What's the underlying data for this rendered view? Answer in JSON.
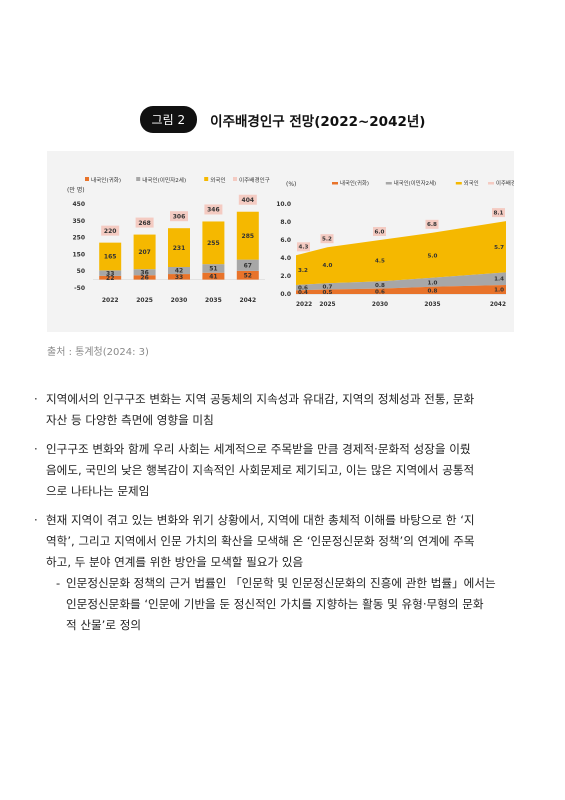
{
  "figure": {
    "badge": "그림 2",
    "title": "이주배경인구 전망(2022~2042년)"
  },
  "source": "출처 : 통계청(2024: 3)",
  "colors": {
    "native_naturalized": "#e8732a",
    "native_immigrant2": "#a7a7a7",
    "foreigner": "#f5b800",
    "total": "#f4cbc2"
  },
  "chart_data": [
    {
      "type": "bar",
      "unit_label": "(만 명)",
      "categories": [
        "2022",
        "2025",
        "2030",
        "2035",
        "2042"
      ],
      "legend": [
        "내국인(귀화)",
        "내국인(이민자2세)",
        "외국인",
        "이주배경인구"
      ],
      "yticks": [
        "450",
        "350",
        "250",
        "150",
        "50",
        "-50"
      ],
      "ylim": [
        -50,
        450
      ],
      "series": [
        {
          "name": "내국인(귀화)",
          "values": [
            22,
            26,
            33,
            41,
            52
          ],
          "labels": [
            "22",
            "26",
            "33",
            "41",
            "52"
          ]
        },
        {
          "name": "내국인(이민자2세)",
          "values": [
            33,
            36,
            42,
            51,
            67
          ],
          "labels": [
            "33",
            "36",
            "42",
            "51",
            "67"
          ]
        },
        {
          "name": "외국인",
          "values": [
            165,
            207,
            231,
            255,
            285
          ],
          "labels": [
            "165",
            "207",
            "231",
            "255",
            "285"
          ]
        },
        {
          "name": "이주배경인구",
          "values": [
            220,
            268,
            306,
            346,
            404
          ],
          "labels": [
            "220",
            "268",
            "306",
            "346",
            "404"
          ]
        }
      ]
    },
    {
      "type": "area",
      "unit_label": "(%)",
      "categories": [
        "2022",
        "2025",
        "2030",
        "2035",
        "2042"
      ],
      "legend": [
        "내국인(귀화)",
        "내국인(이민자2세)",
        "외국인",
        "이주배경인구"
      ],
      "yticks": [
        "10.0",
        "8.0",
        "6.0",
        "4.0",
        "2.0",
        "0.0"
      ],
      "ylim": [
        0,
        10
      ],
      "series": [
        {
          "name": "내국인(귀화)",
          "values": [
            0.4,
            0.5,
            0.6,
            0.8,
            1.0
          ],
          "labels": [
            "0.4",
            "0.5",
            "0.6",
            "0.8",
            "1.0"
          ]
        },
        {
          "name": "내국인(이민자2세)",
          "values": [
            0.6,
            0.7,
            0.8,
            1.0,
            1.4
          ],
          "labels": [
            "0.6",
            "0.7",
            "0.8",
            "1.0",
            "1.4"
          ]
        },
        {
          "name": "외국인",
          "values": [
            3.2,
            4.0,
            4.5,
            5.0,
            5.7
          ],
          "labels": [
            "3.2",
            "4.0",
            "4.5",
            "5.0",
            "5.7"
          ]
        },
        {
          "name": "이주배경인구",
          "values": [
            4.3,
            5.2,
            6.0,
            6.8,
            8.1
          ],
          "labels": [
            "4.3",
            "5.2",
            "6.0",
            "6.8",
            "8.1"
          ]
        }
      ]
    }
  ],
  "bullets": [
    {
      "text": "지역에서의 인구구조 변화는 지역 공동체의 지속성과 유대감, 지역의 정체성과 전통, 문화자산 등 다양한 측면에 영향을 미침",
      "lines": [
        "지역에서의 인구구조 변화는 지역 공동체의 지속성과 유대감, 지역의 정체성과 전통, 문화",
        "자산 등 다양한 측면에 영향을 미침"
      ]
    },
    {
      "text": "인구구조 변화와 함께 우리 사회는 세계적으로 주목받을 만큼 경제적·문화적 성장을 이뤘음에도, 국민의 낮은 행복감이 지속적인 사회문제로 제기되고, 이는 많은 지역에서 공통적으로 나타나는 문제임",
      "lines": [
        "인구구조 변화와 함께 우리 사회는 세계적으로 주목받을 만큼 경제적·문화적 성장을 이뤘",
        "음에도, 국민의 낮은 행복감이 지속적인 사회문제로 제기되고, 이는 많은 지역에서 공통적",
        "으로 나타나는 문제임"
      ]
    },
    {
      "text": "현재 지역이 겪고 있는 변화와 위기 상황에서, 지역에 대한 총체적 이해를 바탕으로 한 ‘지역학’, 그리고 지역에서 인문 가치의 확산을 모색해 온 ‘인문정신문화 정책’의 연계에 주목하고, 두 분야 연계를 위한 방안을 모색할 필요가 있음",
      "lines": [
        "현재 지역이 겪고 있는 변화와 위기 상황에서, 지역에 대한 총체적 이해를 바탕으로 한 ‘지",
        "역학’, 그리고 지역에서 인문 가치의 확산을 모색해 온 ‘인문정신문화 정책’의 연계에 주목",
        "하고, 두 분야 연계를 위한 방안을 모색할 필요가 있음"
      ]
    }
  ],
  "sub_bullet": {
    "text": "인문정신문화 정책의 근거 법률인 「인문학 및 인문정신문화의 진흥에 관한 법률」에서는 인문정신문화를 ‘인문에 기반을 둔 정신적인 가치를 지향하는 활동 및 유형·무형의 문화적 산물’로 정의",
    "lines": [
      "인문정신문화 정책의 근거 법률인 「인문학 및 인문정신문화의 진흥에 관한 법률」에서는",
      "인문정신문화를 ‘인문에 기반을 둔 정신적인 가치를 지향하는 활동 및 유형·무형의 문화",
      "적 산물’로 정의"
    ]
  }
}
